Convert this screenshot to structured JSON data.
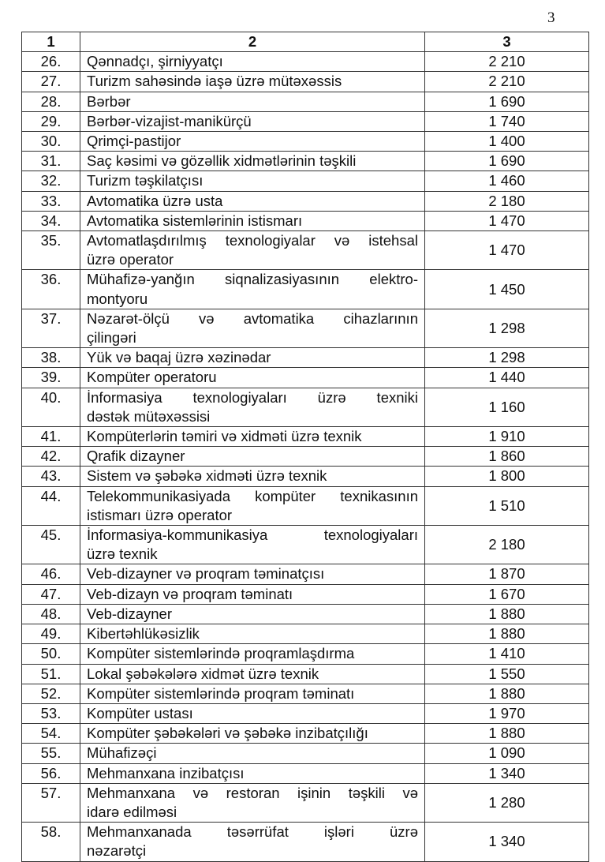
{
  "page_number": "3",
  "table": {
    "headers": [
      "1",
      "2",
      "3"
    ],
    "rows": [
      {
        "no": "26.",
        "lines": [
          "Qənnadçı, şirniyyatçı"
        ],
        "value": "2 210"
      },
      {
        "no": "27.",
        "lines": [
          "Turizm sahəsində iaşə üzrə mütəxəssis"
        ],
        "value": "2 210"
      },
      {
        "no": "28.",
        "lines": [
          "Bərbər"
        ],
        "value": "1 690"
      },
      {
        "no": "29.",
        "lines": [
          "Bərbər-vizajist-manikürçü"
        ],
        "value": "1 740"
      },
      {
        "no": "30.",
        "lines": [
          "Qrimçi-pastijor"
        ],
        "value": "1 400"
      },
      {
        "no": "31.",
        "lines": [
          "Saç kəsimi və gözəllik xidmətlərinin təşkili"
        ],
        "value": "1 690"
      },
      {
        "no": "32.",
        "lines": [
          "Turizm təşkilatçısı"
        ],
        "value": "1 460"
      },
      {
        "no": "33.",
        "lines": [
          "Avtomatika üzrə usta"
        ],
        "value": "2 180"
      },
      {
        "no": "34.",
        "lines": [
          "Avtomatika sistemlərinin istismarı"
        ],
        "value": "1 470"
      },
      {
        "no": "35.",
        "lines": [
          "Avtomatlaşdırılmış texnologiyalar və istehsal",
          "üzrə operator"
        ],
        "value": "1 470"
      },
      {
        "no": "36.",
        "lines": [
          "Mühafizə-yanğın siqnalizasiyasının elektro-",
          "montyoru"
        ],
        "value": "1 450"
      },
      {
        "no": "37.",
        "lines": [
          "Nəzarət-ölçü və avtomatika cihazlarının",
          "çilingəri"
        ],
        "value": "1 298"
      },
      {
        "no": "38.",
        "lines": [
          "Yük və baqaj üzrə xəzinədar"
        ],
        "value": "1 298"
      },
      {
        "no": "39.",
        "lines": [
          "Kompüter operatoru"
        ],
        "value": "1 440"
      },
      {
        "no": "40.",
        "lines": [
          "İnformasiya texnologiyaları üzrə texniki",
          "dəstək mütəxəssisi"
        ],
        "value": "1 160"
      },
      {
        "no": "41.",
        "lines": [
          "Kompüterlərin təmiri və xidməti üzrə texnik"
        ],
        "value": "1 910"
      },
      {
        "no": "42.",
        "lines": [
          "Qrafik dizayner"
        ],
        "value": "1 860"
      },
      {
        "no": "43.",
        "lines": [
          "Sistem və şəbəkə xidməti üzrə texnik"
        ],
        "value": "1 800"
      },
      {
        "no": "44.",
        "lines": [
          "Telekommunikasiyada kompüter texnikasının",
          "istismarı üzrə operator"
        ],
        "value": "1 510"
      },
      {
        "no": "45.",
        "lines": [
          "İnformasiya-kommunikasiya texnologiyaları",
          "üzrə texnik"
        ],
        "value": "2 180"
      },
      {
        "no": "46.",
        "lines": [
          "Veb-dizayner və proqram təminatçısı"
        ],
        "value": "1 870"
      },
      {
        "no": "47.",
        "lines": [
          "Veb-dizayn və proqram təminatı"
        ],
        "value": "1 670"
      },
      {
        "no": "48.",
        "lines": [
          "Veb-dizayner"
        ],
        "value": "1 880"
      },
      {
        "no": "49.",
        "lines": [
          "Kibertəhlükəsizlik"
        ],
        "value": "1 880"
      },
      {
        "no": "50.",
        "lines": [
          "Kompüter sistemlərində proqramlaşdırma"
        ],
        "value": "1 410"
      },
      {
        "no": "51.",
        "lines": [
          "Lokal şəbəkələrə xidmət üzrə texnik"
        ],
        "value": "1 550"
      },
      {
        "no": "52.",
        "lines": [
          "Kompüter sistemlərində proqram təminatı"
        ],
        "value": "1 880"
      },
      {
        "no": "53.",
        "lines": [
          "Kompüter ustası"
        ],
        "value": "1 970"
      },
      {
        "no": "54.",
        "lines": [
          "Kompüter şəbəkələri və şəbəkə inzibatçılığı"
        ],
        "value": "1 880"
      },
      {
        "no": "55.",
        "lines": [
          "Mühafizəçi"
        ],
        "value": "1 090"
      },
      {
        "no": "56.",
        "lines": [
          "Mehmanxana inzibatçısı"
        ],
        "value": "1 340"
      },
      {
        "no": "57.",
        "lines": [
          "Mehmanxana və restoran işinin təşkili və",
          "idarə edilməsi"
        ],
        "value": "1 280"
      },
      {
        "no": "58.",
        "lines": [
          "Mehmanxanada təsərrüfat işləri üzrə",
          "nəzarətçi"
        ],
        "value": "1 340"
      }
    ]
  }
}
